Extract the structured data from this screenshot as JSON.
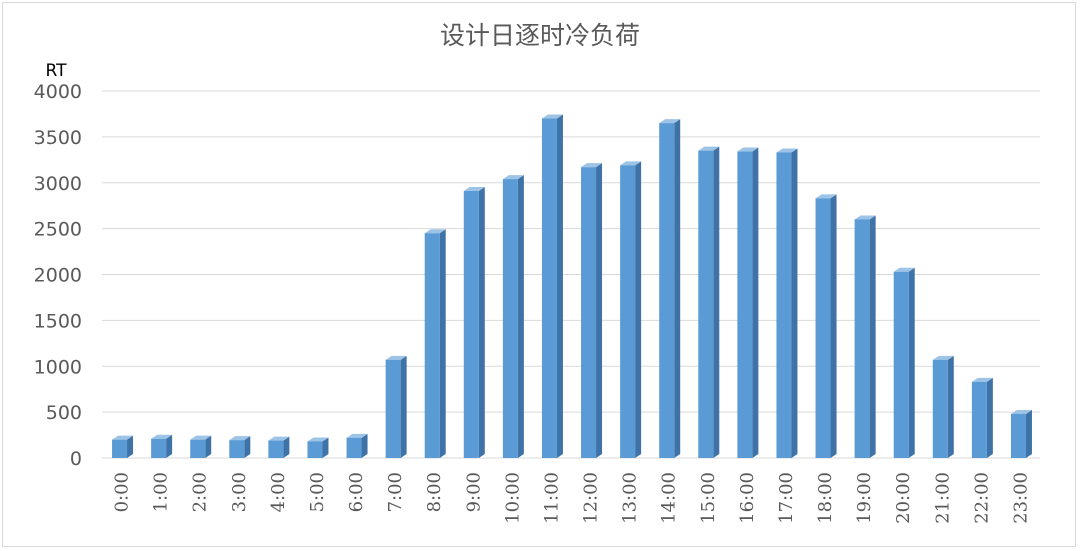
{
  "chart_data": {
    "type": "bar",
    "title": "设计日逐时冷负荷",
    "ylabel": "RT",
    "xlabel": "",
    "ylim": [
      0,
      4000
    ],
    "yticks": [
      0,
      500,
      1000,
      1500,
      2000,
      2500,
      3000,
      3500,
      4000
    ],
    "categories": [
      "0:00",
      "1:00",
      "2:00",
      "3:00",
      "4:00",
      "5:00",
      "6:00",
      "7:00",
      "8:00",
      "9:00",
      "10:00",
      "11:00",
      "12:00",
      "13:00",
      "14:00",
      "15:00",
      "16:00",
      "17:00",
      "18:00",
      "19:00",
      "20:00",
      "21:00",
      "22:00",
      "23:00"
    ],
    "values": [
      200,
      210,
      200,
      195,
      190,
      180,
      220,
      1070,
      2450,
      2910,
      3040,
      3700,
      3170,
      3190,
      3650,
      3350,
      3340,
      3330,
      2830,
      2600,
      2030,
      1070,
      830,
      480
    ],
    "grid": true,
    "legend": "none",
    "colors": {
      "bar_front": "#5b9bd5",
      "bar_side": "#3f72a6",
      "bar_top": "#9dc3e6"
    }
  }
}
